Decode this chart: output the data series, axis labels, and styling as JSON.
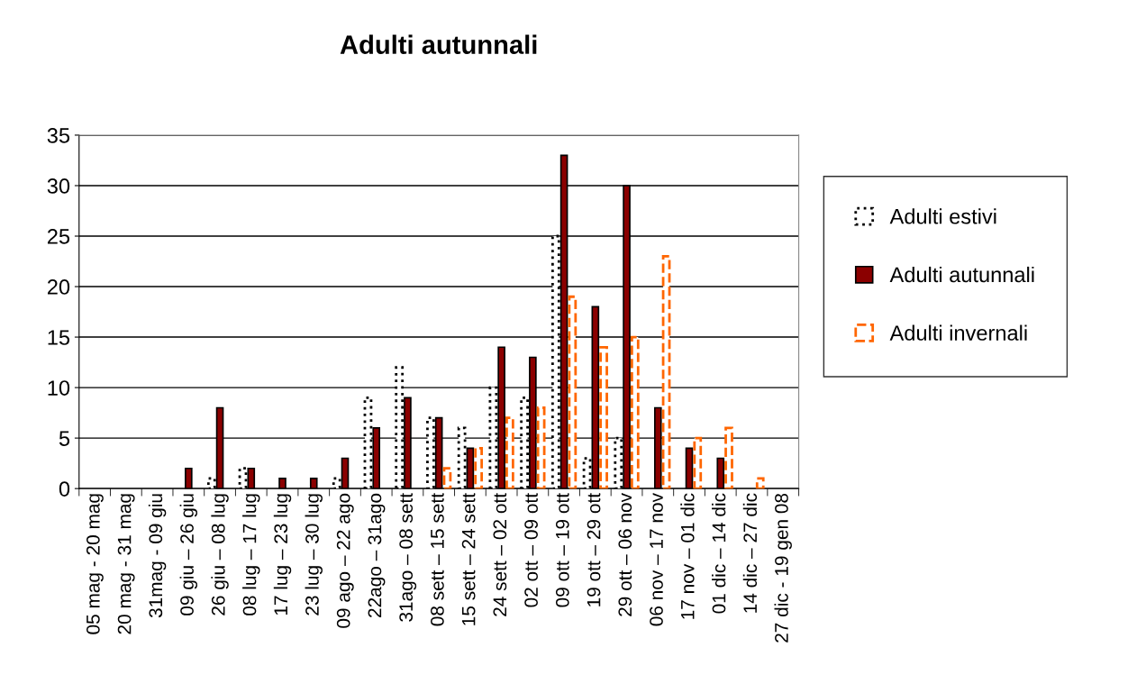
{
  "chart_data": {
    "type": "bar",
    "title": "Adulti autunnali",
    "categories": [
      "05 mag - 20 mag",
      "20 mag - 31 mag",
      "31mag - 09 giu",
      "09 giu – 26 giu",
      "26 giu – 08 lug",
      "08 lug – 17 lug",
      "17 lug – 23 lug",
      "23 lug – 30 lug",
      "09 ago – 22 ago",
      "22ago – 31ago",
      "31ago – 08 sett",
      "08 sett – 15 sett",
      "15 sett – 24 sett",
      "24 sett – 02 ott",
      "02 ott – 09 ott",
      "09 ott – 19 ott",
      "19 ott – 29 ott",
      "29 ott – 06 nov",
      "06 nov – 17 nov",
      "17 nov – 01 dic",
      "01 dic – 14 dic",
      "14 dic – 27 dic",
      "27 dic - 19 gen 08"
    ],
    "series": [
      {
        "name": "Adulti estivi",
        "color": "#000000",
        "line_style": "dotted",
        "values": [
          0,
          0,
          0,
          0,
          1,
          2,
          0,
          0,
          1,
          9,
          12,
          7,
          6,
          10,
          9,
          25,
          3,
          5,
          0,
          0,
          0,
          0,
          0
        ]
      },
      {
        "name": "Adulti autunnali",
        "color": "#8b0000",
        "line_style": "solid",
        "values": [
          0,
          0,
          0,
          2,
          8,
          2,
          1,
          1,
          3,
          6,
          9,
          7,
          4,
          14,
          13,
          33,
          18,
          30,
          8,
          4,
          3,
          0,
          0
        ]
      },
      {
        "name": "Adulti invernali",
        "color": "#ff6600",
        "line_style": "dashed",
        "values": [
          0,
          0,
          0,
          0,
          0,
          0,
          0,
          0,
          0,
          0,
          0,
          2,
          4,
          7,
          8,
          19,
          14,
          15,
          23,
          5,
          6,
          1,
          0
        ]
      }
    ],
    "ylim": [
      0,
      35
    ],
    "yticks": [
      0,
      5,
      10,
      15,
      20,
      25,
      30,
      35
    ],
    "grid": "y",
    "legend": "right"
  }
}
